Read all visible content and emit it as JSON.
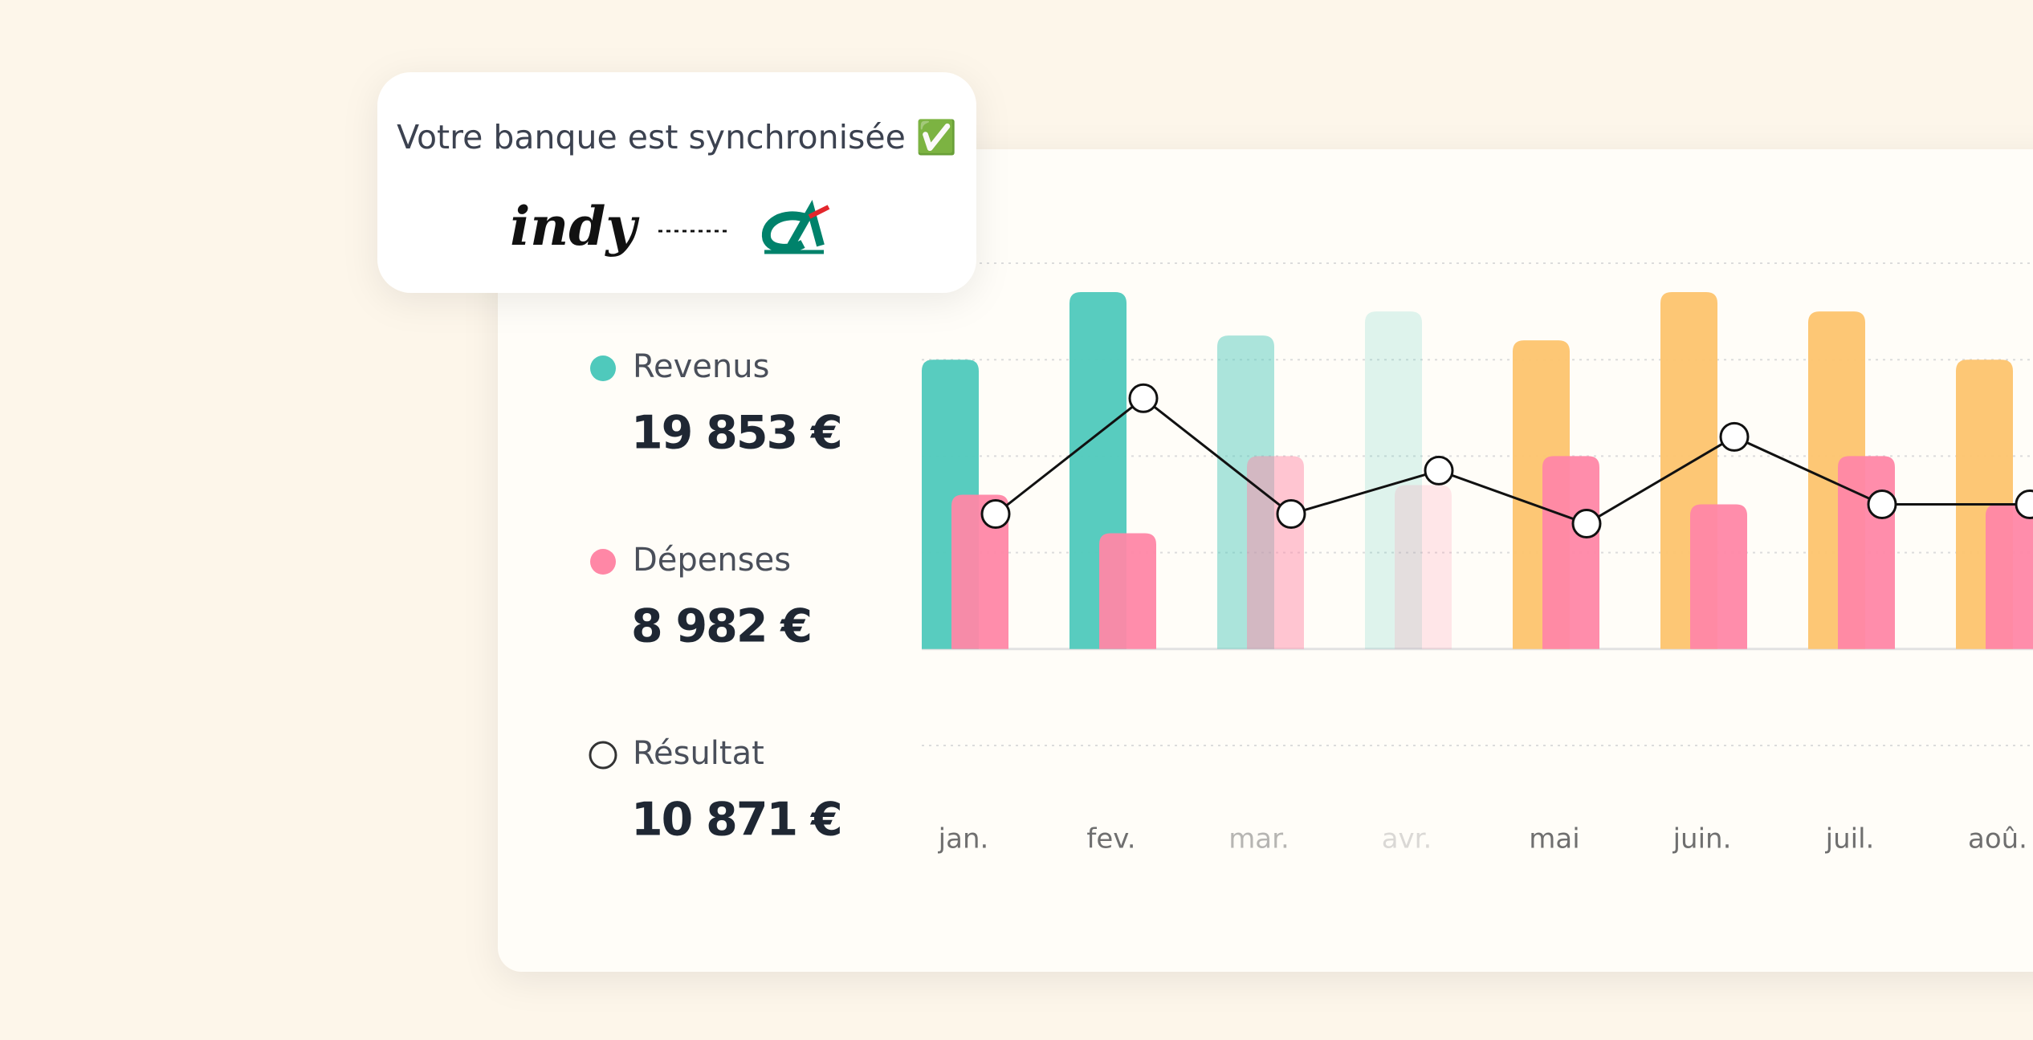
{
  "sync_card": {
    "text": "Votre banque est synchronisée ✅",
    "brand": "indy"
  },
  "chart_data": {
    "type": "bar",
    "categories": [
      "jan.",
      "fev.",
      "mar.",
      "avr.",
      "mai",
      "juin.",
      "juil.",
      "aoû."
    ],
    "opacity": [
      1,
      1,
      0.5,
      0.2,
      1,
      1,
      1,
      1
    ],
    "series": [
      {
        "name": "Revenus",
        "total": "19 853 €",
        "color": "#4fc9bc",
        "bar_colors": [
          "#4fc9bc",
          "#4fc9bc",
          "#4fc9bc",
          "#4fc9bc",
          "#fdc46e",
          "#fdc46e",
          "#fdc46e",
          "#fdc46e"
        ],
        "values": [
          3.0,
          3.7,
          3.25,
          3.5,
          3.2,
          3.7,
          3.5,
          3.0
        ]
      },
      {
        "name": "Dépenses",
        "total": "8 982 €",
        "color": "#ff87a6",
        "values": [
          1.6,
          1.2,
          2.0,
          1.7,
          2.0,
          1.5,
          2.0,
          1.5
        ]
      },
      {
        "name": "Résultat",
        "total": "10 871 €",
        "type": "line",
        "color": "#111111",
        "values": [
          1.4,
          2.6,
          1.4,
          1.85,
          1.3,
          2.2,
          1.5,
          1.5
        ]
      }
    ],
    "ylim": [
      -1,
      4
    ],
    "yticks": [
      -1,
      0,
      1,
      2,
      3,
      4
    ],
    "grid": true
  }
}
